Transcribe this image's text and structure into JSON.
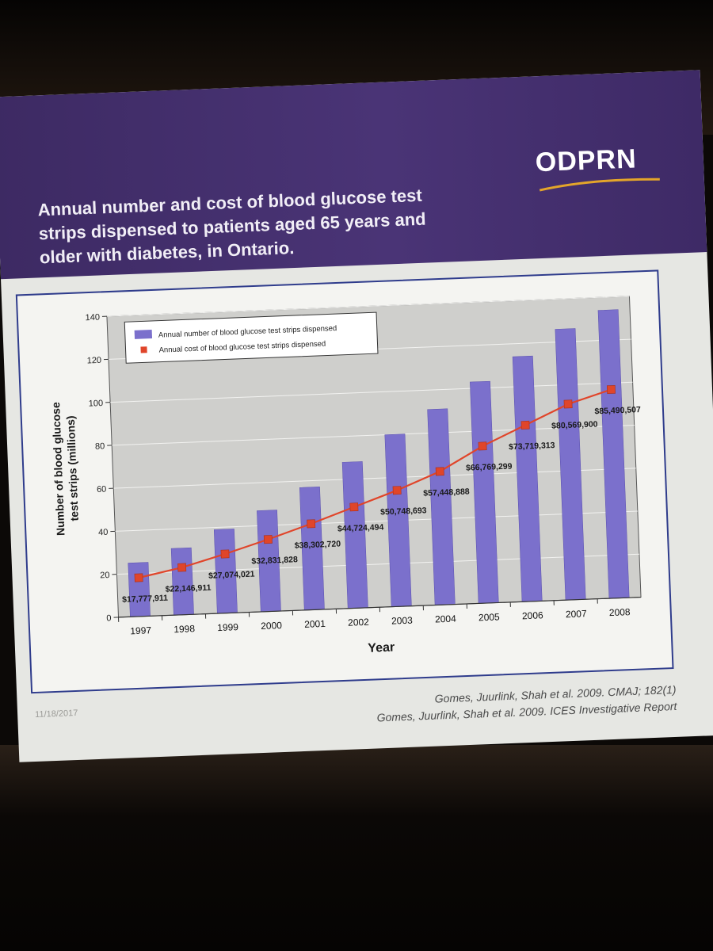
{
  "slide": {
    "title_line1": "Annual number and cost of blood glucose test",
    "title_line2": "strips dispensed to patients aged 65 years and",
    "title_line3": "older with diabetes, in Ontario.",
    "logo_text": "ODPRN",
    "date": "11/18/2017",
    "source_line1": "Gomes, Juurlink, Shah et al. 2009. CMAJ; 182(1)",
    "source_line2": "Gomes, Juurlink, Shah et al. 2009. ICES Investigative Report"
  },
  "colors": {
    "banner": "#45306f",
    "bar": "#7b70cc",
    "line": "#e0452a",
    "plot_bg": "#cfcfcc"
  },
  "chart_data": {
    "type": "bar",
    "title": "",
    "xlabel": "Year",
    "ylabel_line1": "Number of blood glucose",
    "ylabel_line2": "test strips (millions)",
    "ylim": [
      0,
      140
    ],
    "yticks": [
      "0",
      "20",
      "40",
      "60",
      "80",
      "100",
      "120",
      "140"
    ],
    "categories": [
      "1997",
      "1998",
      "1999",
      "2000",
      "2001",
      "2002",
      "2003",
      "2004",
      "2005",
      "2006",
      "2007",
      "2008"
    ],
    "legend_position": "top-left",
    "grid": true,
    "series": [
      {
        "name": "Annual number of blood glucose test strips dispensed",
        "type": "bar",
        "values": [
          25,
          31,
          39,
          47,
          57,
          68,
          80,
          91,
          103,
          114,
          126,
          134
        ]
      },
      {
        "name": "Annual cost of blood glucose test strips dispensed",
        "type": "line",
        "values": [
          18,
          22,
          27.5,
          33.5,
          40,
          47,
          54,
          62,
          73,
          82,
          91,
          97
        ],
        "labels": [
          "$17,777,911",
          "$22,146,911",
          "$27,074,021",
          "$32,831,828",
          "$38,302,720",
          "$44,724,494",
          "$50,748,693",
          "$57,448,888",
          "$66,769,299",
          "$73,719,313",
          "$80,569,900",
          "$85,490,507"
        ]
      }
    ]
  }
}
